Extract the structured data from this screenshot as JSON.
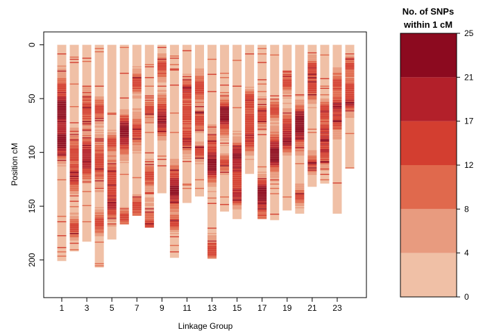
{
  "chart_data": {
    "type": "heatmap",
    "title": "",
    "xlabel": "Linkage Group",
    "ylabel": "Position cM",
    "ylim": [
      235,
      -12
    ],
    "xticks": [
      1,
      3,
      5,
      7,
      9,
      11,
      13,
      15,
      17,
      19,
      21,
      23
    ],
    "yticks": [
      0,
      50,
      100,
      150,
      200
    ],
    "groups": [
      1,
      2,
      3,
      4,
      5,
      6,
      7,
      8,
      9,
      10,
      11,
      12,
      13,
      14,
      15,
      16,
      17,
      18,
      19,
      20,
      21,
      22,
      23,
      24
    ],
    "lengths": [
      201,
      192,
      183,
      207,
      181,
      167,
      159,
      170,
      138,
      198,
      147,
      141,
      199,
      155,
      162,
      120,
      162,
      163,
      154,
      157,
      132,
      129,
      157,
      115
    ],
    "hotspots": [
      [
        [
          47,
          20
        ],
        [
          80,
          18
        ],
        [
          95,
          12
        ],
        [
          60,
          9
        ]
      ],
      [
        [
          100,
          16
        ],
        [
          125,
          12
        ],
        [
          170,
          10
        ]
      ],
      [
        [
          60,
          16
        ],
        [
          97,
          14
        ],
        [
          113,
          12
        ]
      ],
      [
        [
          108,
          22
        ],
        [
          60,
          10
        ],
        [
          165,
          10
        ]
      ],
      [
        [
          124,
          20
        ],
        [
          150,
          12
        ],
        [
          90,
          8
        ]
      ],
      [
        [
          88,
          16
        ],
        [
          75,
          12
        ],
        [
          160,
          8
        ]
      ],
      [
        [
          80,
          14
        ],
        [
          35,
          10
        ],
        [
          150,
          10
        ]
      ],
      [
        [
          122,
          12
        ],
        [
          168,
          16
        ],
        [
          60,
          8
        ]
      ],
      [
        [
          60,
          14
        ],
        [
          20,
          10
        ],
        [
          75,
          10
        ]
      ],
      [
        [
          125,
          16
        ],
        [
          140,
          12
        ],
        [
          165,
          8
        ]
      ],
      [
        [
          63,
          18
        ],
        [
          90,
          10
        ],
        [
          40,
          8
        ]
      ],
      [
        [
          40,
          14
        ],
        [
          70,
          10
        ],
        [
          100,
          8
        ]
      ],
      [
        [
          100,
          20
        ],
        [
          115,
          12
        ],
        [
          190,
          10
        ]
      ],
      [
        [
          70,
          14
        ],
        [
          60,
          10
        ],
        [
          110,
          8
        ]
      ],
      [
        [
          118,
          18
        ],
        [
          100,
          12
        ],
        [
          140,
          10
        ]
      ],
      [
        [
          70,
          14
        ],
        [
          90,
          10
        ],
        [
          50,
          8
        ]
      ],
      [
        [
          147,
          20
        ],
        [
          65,
          12
        ],
        [
          135,
          10
        ]
      ],
      [
        [
          95,
          16
        ],
        [
          105,
          12
        ],
        [
          60,
          8
        ]
      ],
      [
        [
          75,
          14
        ],
        [
          90,
          10
        ],
        [
          35,
          8
        ]
      ],
      [
        [
          80,
          18
        ],
        [
          70,
          14
        ],
        [
          140,
          8
        ]
      ],
      [
        [
          40,
          12
        ],
        [
          20,
          8
        ],
        [
          110,
          8
        ]
      ],
      [
        [
          80,
          14
        ],
        [
          100,
          12
        ],
        [
          60,
          8
        ]
      ],
      [
        [
          70,
          12
        ],
        [
          35,
          10
        ],
        [
          55,
          8
        ]
      ],
      [
        [
          40,
          10
        ],
        [
          55,
          8
        ],
        [
          20,
          8
        ]
      ]
    ],
    "legend": {
      "title_line1": "No. of SNPs",
      "title_line2": "within 1 cM",
      "labels": [
        "0",
        "4",
        "8",
        "12",
        "17",
        "21",
        "25"
      ],
      "colors": [
        "#f0c0a6",
        "#e89b7f",
        "#e0694d",
        "#d33e30",
        "#b3202a",
        "#8c0a1f"
      ]
    }
  }
}
